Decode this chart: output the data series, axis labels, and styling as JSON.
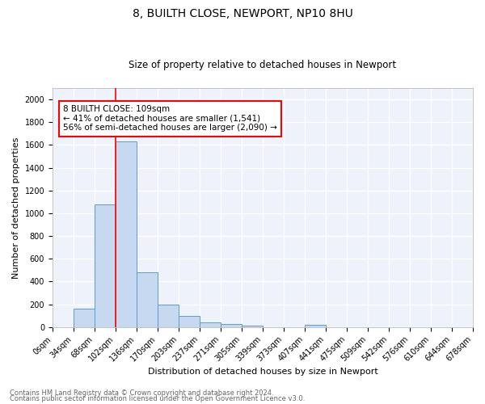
{
  "title1": "8, BUILTH CLOSE, NEWPORT, NP10 8HU",
  "title2": "Size of property relative to detached houses in Newport",
  "xlabel": "Distribution of detached houses by size in Newport",
  "ylabel": "Number of detached properties",
  "bar_color": "#c6d9f0",
  "bar_edge_color": "#5b9bd5",
  "background_color": "#eef3fb",
  "grid_color": "#ffffff",
  "bin_labels": [
    "0sqm",
    "34sqm",
    "68sqm",
    "102sqm",
    "136sqm",
    "170sqm",
    "203sqm",
    "237sqm",
    "271sqm",
    "305sqm",
    "339sqm",
    "373sqm",
    "407sqm",
    "441sqm",
    "475sqm",
    "509sqm",
    "542sqm",
    "576sqm",
    "610sqm",
    "644sqm",
    "678sqm"
  ],
  "bar_heights": [
    0,
    160,
    1075,
    1630,
    480,
    200,
    100,
    40,
    28,
    15,
    0,
    0,
    20,
    0,
    0,
    0,
    0,
    0,
    0,
    0
  ],
  "ylim": [
    0,
    2100
  ],
  "yticks": [
    0,
    200,
    400,
    600,
    800,
    1000,
    1200,
    1400,
    1600,
    1800,
    2000
  ],
  "red_line_x": 3,
  "annotation_title": "8 BUILTH CLOSE: 109sqm",
  "annotation_line1": "← 41% of detached houses are smaller (1,541)",
  "annotation_line2": "56% of semi-detached houses are larger (2,090) →",
  "footer1": "Contains HM Land Registry data © Crown copyright and database right 2024.",
  "footer2": "Contains public sector information licensed under the Open Government Licence v3.0.",
  "title1_fontsize": 10,
  "title2_fontsize": 8.5,
  "xlabel_fontsize": 8,
  "ylabel_fontsize": 8,
  "tick_fontsize": 7,
  "annotation_fontsize": 7.5,
  "footer_fontsize": 6
}
